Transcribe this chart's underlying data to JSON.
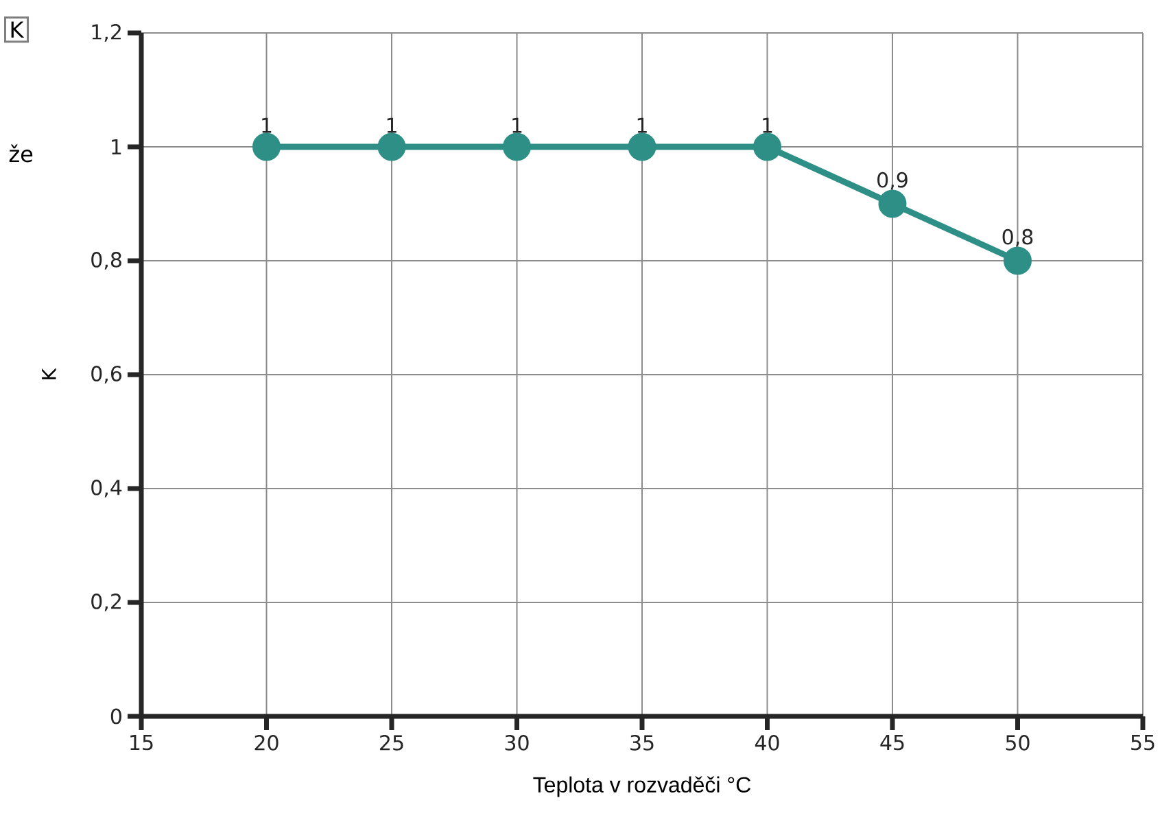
{
  "chart_data": {
    "type": "line",
    "xlabel": "Teplota v rozvaděči °C",
    "ylabel": "K",
    "x": [
      20,
      25,
      30,
      35,
      40,
      45,
      50
    ],
    "series": [
      {
        "color": "#2e8f87",
        "values": [
          1,
          1,
          1,
          1,
          1,
          0.9,
          0.8
        ],
        "value_labels": [
          "1",
          "1",
          "1",
          "1",
          "1",
          "0,9",
          "0,8"
        ]
      }
    ],
    "xlim": [
      15,
      55
    ],
    "xticks": [
      15,
      20,
      25,
      30,
      35,
      40,
      45,
      50,
      55
    ],
    "ylim": [
      0,
      1.2
    ],
    "yticks": [
      {
        "value": 0,
        "label": "0"
      },
      {
        "value": 0.2,
        "label": "0,2"
      },
      {
        "value": 0.4,
        "label": "0,4"
      },
      {
        "value": 0.6,
        "label": "0,6"
      },
      {
        "value": 0.8,
        "label": "0,8"
      },
      {
        "value": 1,
        "label": "1"
      },
      {
        "value": 1.2,
        "label": "1,2"
      }
    ],
    "grid": true,
    "marker": "circle",
    "line_style": "solid",
    "annotations": [
      "K",
      "že"
    ]
  }
}
